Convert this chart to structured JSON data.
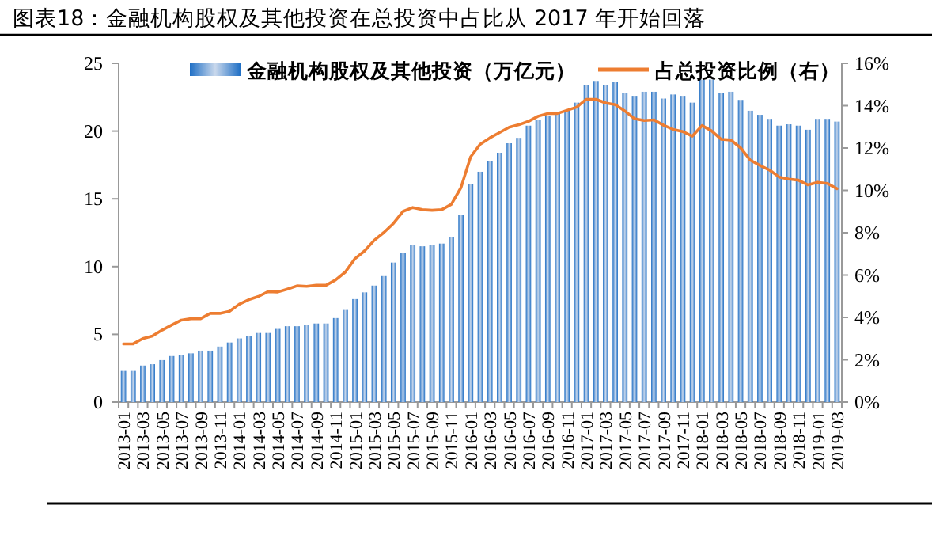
{
  "chart_data": {
    "type": "bar",
    "title": "图表18：金融机构股权及其他投资在总投资中占比从 2017 年开始回落",
    "categories": [
      "2013-01",
      null,
      "2013-03",
      null,
      "2013-05",
      null,
      "2013-07",
      null,
      "2013-09",
      null,
      "2013-11",
      null,
      "2014-01",
      null,
      "2014-03",
      null,
      "2014-05",
      null,
      "2014-07",
      null,
      "2014-09",
      null,
      "2014-11",
      null,
      "2015-01",
      null,
      "2015-03",
      null,
      "2015-05",
      null,
      "2015-07",
      null,
      "2015-09",
      null,
      "2015-11",
      null,
      "2016-01",
      null,
      "2016-03",
      null,
      "2016-05",
      null,
      "2016-07",
      null,
      "2016-09",
      null,
      "2016-11",
      null,
      "2017-01",
      null,
      "2017-03",
      null,
      "2017-05",
      null,
      "2017-07",
      null,
      "2017-09",
      null,
      "2017-11",
      null,
      "2018-01",
      null,
      "2018-03",
      null,
      "2018-05",
      null,
      "2018-07",
      null,
      "2018-09",
      null,
      "2018-11",
      null,
      "2019-01",
      null,
      "2019-03"
    ],
    "series": [
      {
        "name": "金融机构股权及其他投资（万亿元）",
        "color": "#1f6fc5",
        "values": [
          2.3,
          2.3,
          2.7,
          2.8,
          3.1,
          3.4,
          3.5,
          3.6,
          3.8,
          3.8,
          4.1,
          4.4,
          4.7,
          4.9,
          5.1,
          5.1,
          5.4,
          5.6,
          5.6,
          5.7,
          5.8,
          5.8,
          6.2,
          6.8,
          7.6,
          8.1,
          8.6,
          9.3,
          10.3,
          11.0,
          11.6,
          11.5,
          11.6,
          11.7,
          12.2,
          13.8,
          16.1,
          17.0,
          17.8,
          18.4,
          19.1,
          19.5,
          20.4,
          20.8,
          21.1,
          21.3,
          21.5,
          22.1,
          23.4,
          23.7,
          23.4,
          23.6,
          22.8,
          22.6,
          22.9,
          22.9,
          22.4,
          22.7,
          22.6,
          22.1,
          23.8,
          23.8,
          22.8,
          22.9,
          22.3,
          21.5,
          21.2,
          20.9,
          20.4,
          20.5,
          20.4,
          20.1,
          20.9,
          20.9,
          20.7
        ]
      },
      {
        "name": "占总投资比例（右）",
        "type": "line",
        "axis": "y2",
        "color": "#ed7d31",
        "values": [
          2.75,
          2.75,
          3.0,
          3.12,
          3.4,
          3.64,
          3.87,
          3.94,
          3.94,
          4.19,
          4.19,
          4.29,
          4.62,
          4.84,
          4.99,
          5.22,
          5.2,
          5.34,
          5.49,
          5.47,
          5.52,
          5.52,
          5.77,
          6.14,
          6.77,
          7.14,
          7.64,
          8.01,
          8.44,
          9.01,
          9.19,
          9.09,
          9.06,
          9.09,
          9.34,
          10.13,
          11.58,
          12.18,
          12.48,
          12.73,
          12.98,
          13.1,
          13.26,
          13.5,
          13.63,
          13.63,
          13.78,
          13.93,
          14.3,
          14.3,
          14.13,
          14.05,
          13.75,
          13.38,
          13.3,
          13.33,
          13.08,
          12.88,
          12.78,
          12.56,
          13.06,
          12.81,
          12.41,
          12.38,
          12.01,
          11.43,
          11.18,
          10.96,
          10.63,
          10.53,
          10.48,
          10.26,
          10.38,
          10.33,
          10.08
        ]
      }
    ],
    "ylim": [
      0,
      25
    ],
    "yticks": [
      0,
      5,
      10,
      15,
      20,
      25
    ],
    "y2lim": [
      0,
      16
    ],
    "y2ticks": [
      {
        "value": 0,
        "label": "0%"
      },
      {
        "value": 2,
        "label": "2%"
      },
      {
        "value": 4,
        "label": "4%"
      },
      {
        "value": 6,
        "label": "6%"
      },
      {
        "value": 8,
        "label": "8%"
      },
      {
        "value": 10,
        "label": "10%"
      },
      {
        "value": 12,
        "label": "12%"
      },
      {
        "value": 14,
        "label": "14%"
      },
      {
        "value": 16,
        "label": "16%"
      }
    ],
    "legend": "top"
  }
}
